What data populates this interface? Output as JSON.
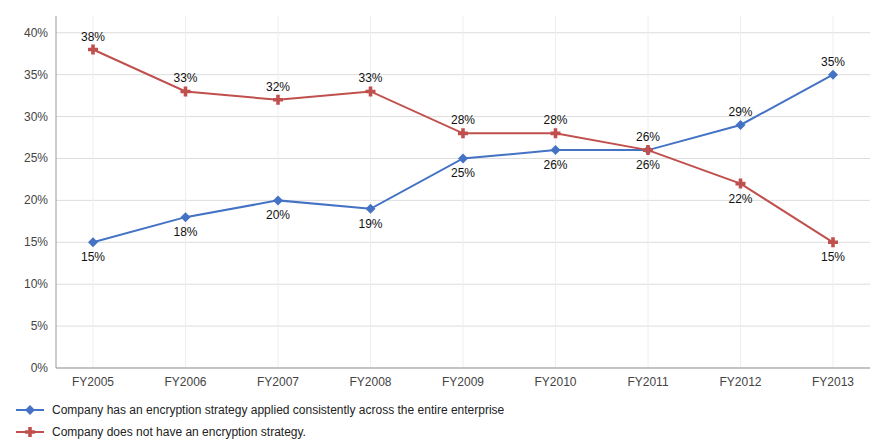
{
  "chart_data": {
    "type": "line",
    "categories": [
      "FY2005",
      "FY2006",
      "FY2007",
      "FY2008",
      "FY2009",
      "FY2010",
      "FY2011",
      "FY2012",
      "FY2013"
    ],
    "series": [
      {
        "name": "Company has an encryption strategy applied consistently across the entire enterprise",
        "color": "#4472C4",
        "marker": "diamond",
        "line_style": "solid",
        "values": [
          15,
          18,
          20,
          19,
          25,
          26,
          26,
          29,
          35
        ],
        "value_labels": [
          "15%",
          "18%",
          "20%",
          "19%",
          "25%",
          "26%",
          "26%",
          "29%",
          "35%"
        ]
      },
      {
        "name": "Company does not have an encryption strategy.",
        "color": "#C0504D",
        "marker": "plus",
        "line_style": "solid",
        "values": [
          38,
          33,
          32,
          33,
          28,
          28,
          26,
          22,
          15
        ],
        "value_labels": [
          "38%",
          "33%",
          "32%",
          "33%",
          "28%",
          "28%",
          "26%",
          "22%",
          "15%"
        ]
      }
    ],
    "ylim": [
      0,
      42
    ],
    "yticks": [
      {
        "value": 0,
        "label": "0%"
      },
      {
        "value": 5,
        "label": "5%"
      },
      {
        "value": 10,
        "label": "10%"
      },
      {
        "value": 15,
        "label": "15%"
      },
      {
        "value": 20,
        "label": "20%"
      },
      {
        "value": 25,
        "label": "25%"
      },
      {
        "value": 30,
        "label": "30%"
      },
      {
        "value": 35,
        "label": "35%"
      },
      {
        "value": 40,
        "label": "40%"
      }
    ],
    "grid": true,
    "legend": "bottom",
    "data_labels": true
  }
}
